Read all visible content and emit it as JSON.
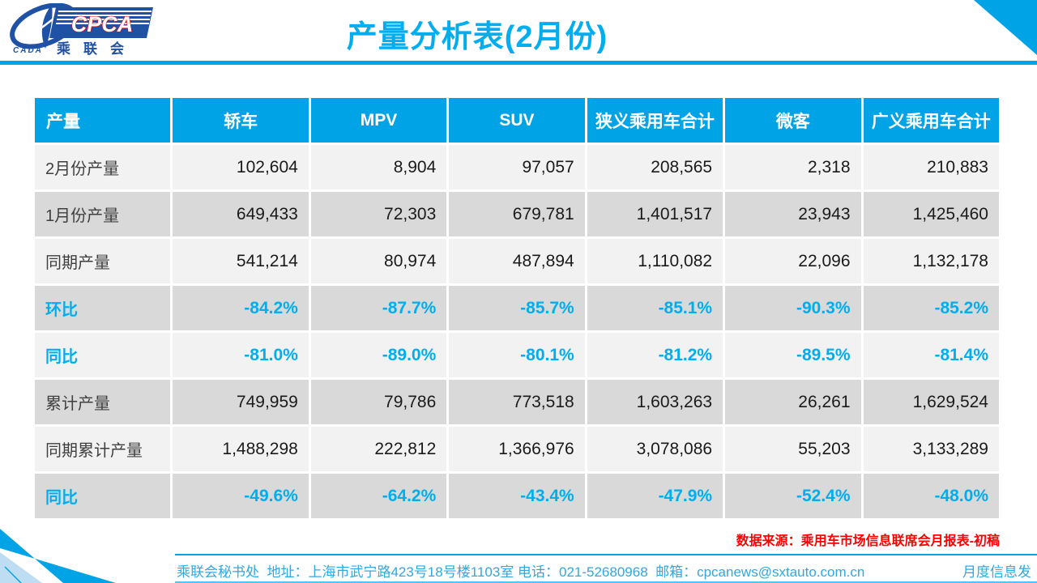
{
  "colors": {
    "accent": "#00A3E6",
    "title_text": "#00AEEF",
    "percent_text": "#00AEEF",
    "row_light": "#F2F2F2",
    "row_dark": "#D9D9D9",
    "source_red": "#FF0000",
    "footer_text": "#2FA8DF",
    "logo_blue": "#1F51A5",
    "logo_red": "#D61518",
    "pale_stripe": "#BFDDF2"
  },
  "logo": {
    "cpca": "CPCA",
    "cada": "CADA",
    "cn": "乘联会"
  },
  "title": "产量分析表(2月份)",
  "chart_data": {
    "type": "table",
    "title": "产量分析表(2月份)",
    "columns": [
      "产量",
      "轿车",
      "MPV",
      "SUV",
      "狭义乘用车合计",
      "微客",
      "广义乘用车合计"
    ],
    "rows": [
      {
        "label": "2月份产量",
        "style": "number",
        "values": [
          "102,604",
          "8,904",
          "97,057",
          "208,565",
          "2,318",
          "210,883"
        ]
      },
      {
        "label": "1月份产量",
        "style": "number",
        "values": [
          "649,433",
          "72,303",
          "679,781",
          "1,401,517",
          "23,943",
          "1,425,460"
        ]
      },
      {
        "label": "同期产量",
        "style": "number",
        "values": [
          "541,214",
          "80,974",
          "487,894",
          "1,110,082",
          "22,096",
          "1,132,178"
        ]
      },
      {
        "label": "环比",
        "style": "percent",
        "values": [
          "-84.2%",
          "-87.7%",
          "-85.7%",
          "-85.1%",
          "-90.3%",
          "-85.2%"
        ]
      },
      {
        "label": "同比",
        "style": "percent",
        "values": [
          "-81.0%",
          "-89.0%",
          "-80.1%",
          "-81.2%",
          "-89.5%",
          "-81.4%"
        ]
      },
      {
        "label": "累计产量",
        "style": "number",
        "values": [
          "749,959",
          "79,786",
          "773,518",
          "1,603,263",
          "26,261",
          "1,629,524"
        ]
      },
      {
        "label": "同期累计产量",
        "style": "number",
        "values": [
          "1,488,298",
          "222,812",
          "1,366,976",
          "3,078,086",
          "55,203",
          "3,133,289"
        ]
      },
      {
        "label": "同比",
        "style": "percent",
        "values": [
          "-49.6%",
          "-64.2%",
          "-43.4%",
          "-47.9%",
          "-52.4%",
          "-48.0%"
        ]
      }
    ]
  },
  "source_note": "数据来源：乘用车市场信息联席会月报表-初稿",
  "footer": {
    "left": "乘联会秘书处  地址：上海市武宁路423号18号楼1103室 电话：021-52680968  邮箱：cpcanews@sxtauto.com.cn",
    "right": "月度信息发"
  }
}
